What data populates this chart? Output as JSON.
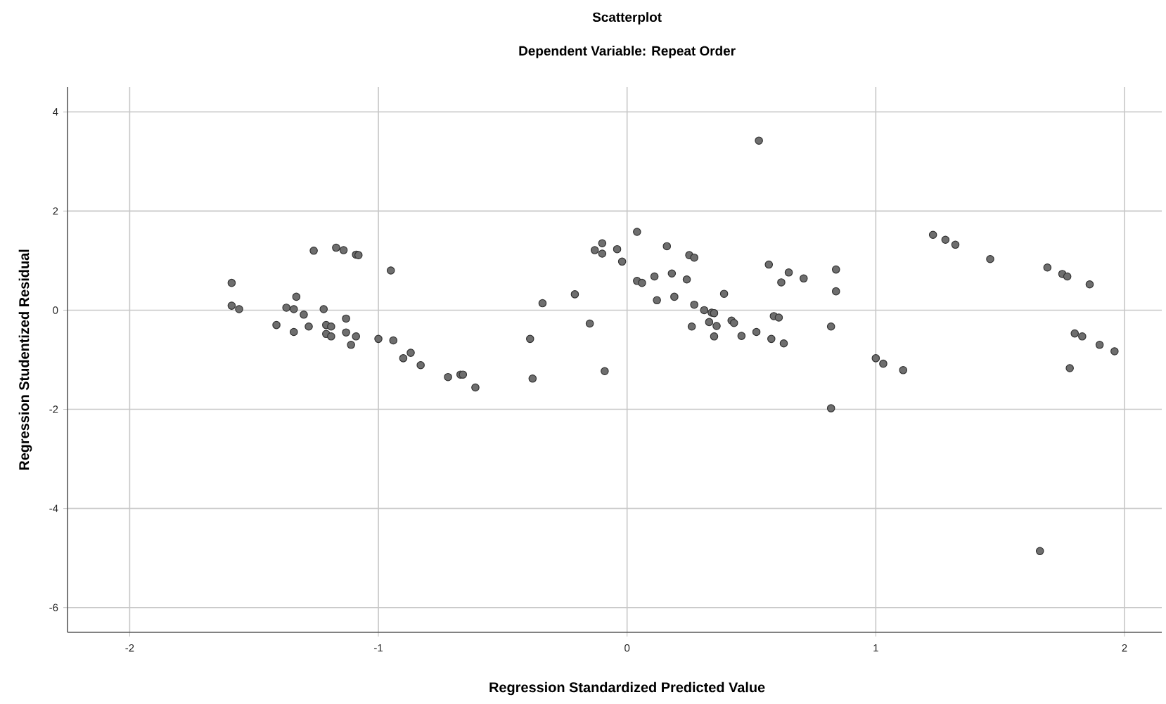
{
  "chart_data": {
    "type": "scatter",
    "title": "Scatterplot",
    "subtitle": "Dependent Variable: Repeat Order",
    "xlabel": "Regression Standardized Predicted Value",
    "ylabel": "Regression Studentized Residual",
    "xlim": [
      -2.25,
      2.15
    ],
    "ylim": [
      -6.5,
      4.5
    ],
    "xticks": [
      -2,
      -1,
      0,
      1,
      2
    ],
    "yticks": [
      -6,
      -4,
      -2,
      0,
      2,
      4
    ],
    "grid": true,
    "series": [
      {
        "color": "#6e6e6e",
        "x": [
          -1.59,
          -1.59,
          -1.56,
          -1.41,
          -1.37,
          -1.34,
          -1.33,
          -1.34,
          -1.3,
          -1.28,
          -1.26,
          -1.22,
          -1.21,
          -1.21,
          -1.19,
          -1.19,
          -1.17,
          -1.14,
          -1.13,
          -1.13,
          -1.11,
          -1.09,
          -1.08,
          -1.09,
          -1.0,
          -0.95,
          -0.94,
          -0.9,
          -0.87,
          -0.83,
          -0.72,
          -0.67,
          -0.66,
          -0.61,
          -0.39,
          -0.38,
          -0.34,
          -0.21,
          -0.15,
          -0.13,
          -0.1,
          -0.1,
          -0.09,
          -0.04,
          -0.02,
          0.04,
          0.04,
          0.06,
          0.11,
          0.12,
          0.16,
          0.18,
          0.19,
          0.24,
          0.25,
          0.27,
          0.26,
          0.27,
          0.31,
          0.34,
          0.35,
          0.33,
          0.36,
          0.35,
          0.39,
          0.42,
          0.43,
          0.46,
          0.52,
          0.53,
          0.57,
          0.58,
          0.59,
          0.61,
          0.62,
          0.63,
          0.65,
          0.71,
          0.82,
          0.82,
          0.84,
          0.84,
          1.0,
          1.03,
          1.11,
          1.23,
          1.28,
          1.32,
          1.46,
          1.66,
          1.69,
          1.75,
          1.77,
          1.78,
          1.8,
          1.83,
          1.86,
          1.9,
          1.96
        ],
        "values": [
          0.55,
          0.09,
          0.02,
          -0.3,
          0.05,
          0.02,
          0.27,
          -0.44,
          -0.09,
          -0.33,
          1.2,
          0.02,
          -0.3,
          -0.48,
          -0.33,
          -0.53,
          1.26,
          1.21,
          -0.17,
          -0.45,
          -0.7,
          1.12,
          1.11,
          -0.53,
          -0.58,
          0.8,
          -0.61,
          -0.97,
          -0.86,
          -1.11,
          -1.35,
          -1.3,
          -1.3,
          -1.56,
          -0.58,
          -1.38,
          0.14,
          0.32,
          -0.27,
          1.21,
          1.35,
          1.14,
          -1.23,
          1.23,
          0.98,
          1.58,
          0.59,
          0.55,
          0.68,
          0.2,
          1.29,
          0.74,
          0.27,
          0.62,
          1.11,
          1.06,
          -0.33,
          0.11,
          0.0,
          -0.05,
          -0.06,
          -0.24,
          -0.32,
          -0.53,
          0.33,
          -0.21,
          -0.26,
          -0.52,
          -0.44,
          3.42,
          0.92,
          -0.58,
          -0.12,
          -0.15,
          0.56,
          -0.67,
          0.76,
          0.64,
          -0.33,
          -1.98,
          0.38,
          0.82,
          -0.97,
          -1.08,
          -1.21,
          1.52,
          1.42,
          1.32,
          1.03,
          -4.86,
          0.86,
          0.73,
          0.68,
          -1.17,
          -0.47,
          -0.53,
          0.52,
          -0.7,
          -0.83
        ]
      }
    ]
  }
}
